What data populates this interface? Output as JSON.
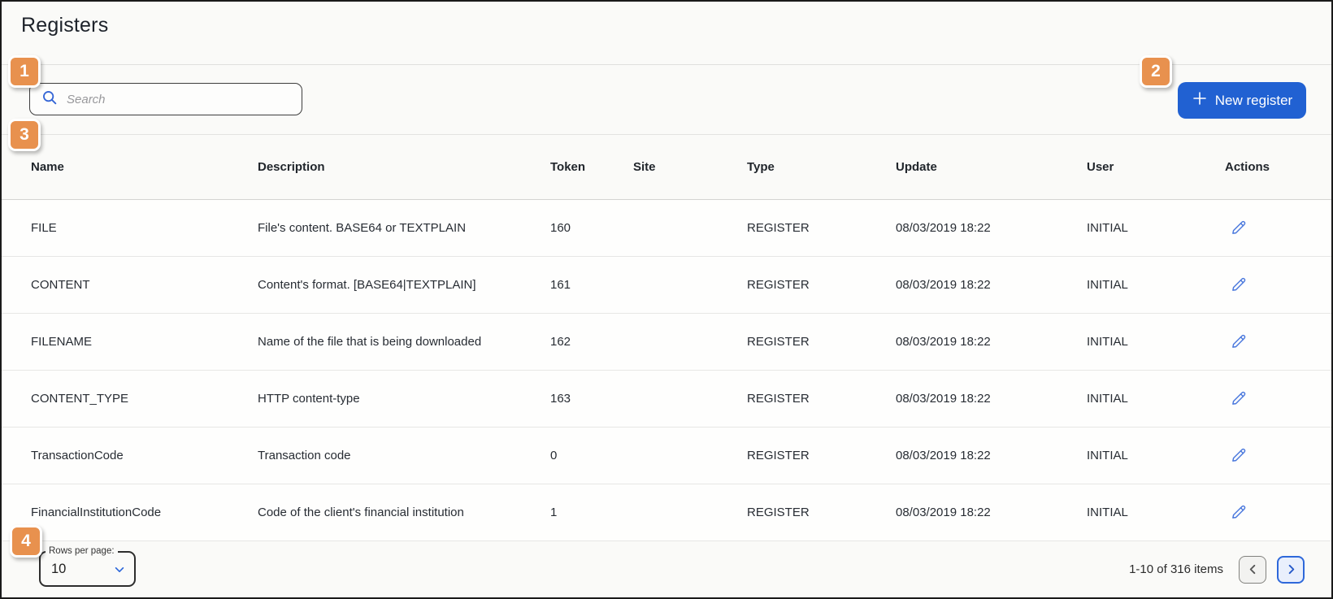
{
  "page": {
    "title": "Registers"
  },
  "colors": {
    "callout_orange": "#E8914E",
    "primary_blue": "#2161D2",
    "icon_blue": "#4A78DD"
  },
  "annotations": {
    "badges": [
      "1",
      "2",
      "3",
      "4"
    ]
  },
  "toolbar": {
    "search": {
      "placeholder": "Search",
      "icon": "search-icon"
    },
    "new_register_button": {
      "label": "New register",
      "icon": "plus-icon"
    }
  },
  "table": {
    "columns": [
      "Name",
      "Description",
      "Token",
      "Site",
      "Type",
      "Update",
      "User",
      "Actions"
    ],
    "rows": [
      {
        "name": "FILE",
        "description": "File's content. BASE64 or TEXTPLAIN",
        "token": "160",
        "site": "",
        "type": "REGISTER",
        "update": "08/03/2019 18:22",
        "user": "INITIAL"
      },
      {
        "name": "CONTENT",
        "description": "Content's format. [BASE64|TEXTPLAIN]",
        "token": "161",
        "site": "",
        "type": "REGISTER",
        "update": "08/03/2019 18:22",
        "user": "INITIAL"
      },
      {
        "name": "FILENAME",
        "description": "Name of the file that is being downloaded",
        "token": "162",
        "site": "",
        "type": "REGISTER",
        "update": "08/03/2019 18:22",
        "user": "INITIAL"
      },
      {
        "name": "CONTENT_TYPE",
        "description": "HTTP content-type",
        "token": "163",
        "site": "",
        "type": "REGISTER",
        "update": "08/03/2019 18:22",
        "user": "INITIAL"
      },
      {
        "name": "TransactionCode",
        "description": "Transaction code",
        "token": "0",
        "site": "",
        "type": "REGISTER",
        "update": "08/03/2019 18:22",
        "user": "INITIAL"
      },
      {
        "name": "FinancialInstitutionCode",
        "description": "Code of the client's financial institution",
        "token": "1",
        "site": "",
        "type": "REGISTER",
        "update": "08/03/2019 18:22",
        "user": "INITIAL"
      }
    ],
    "row_action_icon": "edit-pencil-icon"
  },
  "pagination": {
    "rows_per_page_label": "Rows per page:",
    "rows_per_page_value": "10",
    "range_text": "1-10 of 316 items"
  }
}
